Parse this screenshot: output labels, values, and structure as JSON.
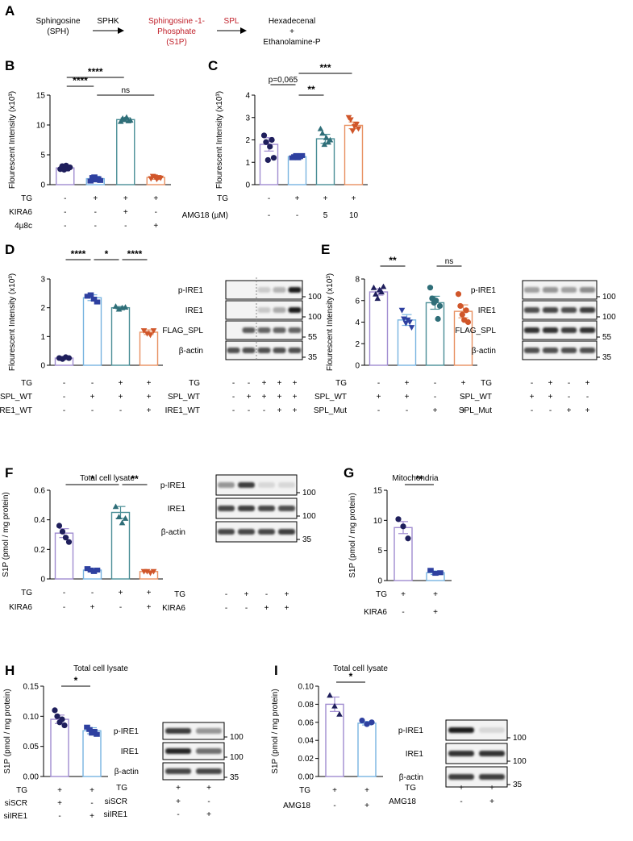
{
  "pathway": {
    "panel": "A",
    "sph": [
      "Sphingosine",
      "(SPH)"
    ],
    "sphk": "SPHK",
    "s1p": [
      "Sphingosine -1-",
      "Phosphate",
      "(S1P)"
    ],
    "spl": "SPL",
    "products": [
      "Hexadecenal",
      "+",
      "Ethanolamine-P"
    ]
  },
  "colors": {
    "navy": "#1f1f5c",
    "blue": "#2e40a0",
    "teal": "#2f6e78",
    "orange": "#d0562a",
    "purple": "#a08cd0",
    "lightblue": "#78b4e0",
    "darkteal": "#4a8e96",
    "lightorange": "#e89060",
    "s1pred": "#c0202a"
  },
  "charts": [
    {
      "id": "B",
      "panel": "B",
      "type": "bar",
      "ylabel": "Flourescent Intensity (x10³)",
      "title": "",
      "ylim": [
        0,
        15
      ],
      "ticks": [
        "0",
        "5",
        "10",
        "15"
      ],
      "values": [
        2.8,
        1.0,
        10.9,
        1.2
      ],
      "errors": [
        0.5,
        0.4,
        0.3,
        0.3
      ],
      "points": [
        [
          2.6,
          3.1,
          2.5,
          3.2,
          2.7,
          2.9
        ],
        [
          0.6,
          1.2,
          1.3,
          0.8,
          1.0,
          0.7
        ],
        [
          10.6,
          11.1,
          10.9,
          11.3,
          10.7,
          10.8
        ],
        [
          1.0,
          1.4,
          1.3,
          0.9,
          1.2,
          1.1
        ]
      ],
      "markers": [
        "circle",
        "square",
        "triangle",
        "tridown"
      ],
      "conditions": [
        {
          "label": "TG",
          "values": [
            "-",
            "+",
            "+",
            "+"
          ]
        },
        {
          "label": "KIRA6",
          "values": [
            "-",
            "-",
            "+",
            "-"
          ]
        },
        {
          "label": "4µ8c",
          "values": [
            "-",
            "-",
            "-",
            "+"
          ]
        }
      ],
      "sig": [
        {
          "from": 0,
          "to": 2,
          "text": "****"
        },
        {
          "from": 0,
          "to": 1,
          "text": "****"
        },
        {
          "from": 1,
          "to": 3,
          "text": "ns"
        }
      ]
    },
    {
      "id": "C",
      "panel": "C",
      "type": "bar",
      "ylabel": "Flourescent Intensity (x10³)",
      "title": "",
      "ylim": [
        0,
        4
      ],
      "ticks": [
        "0",
        "1",
        "2",
        "3",
        "4"
      ],
      "values": [
        1.8,
        1.25,
        2.05,
        2.65
      ],
      "errors": [
        0.3,
        0.05,
        0.2,
        0.15
      ],
      "points": [
        [
          2.2,
          1.9,
          1.1,
          1.7,
          2.0,
          1.2
        ],
        [
          1.2,
          1.25,
          1.3,
          1.2,
          1.25,
          1.3
        ],
        [
          2.5,
          2.3,
          1.8,
          2.1,
          1.9,
          2.0
        ],
        [
          3.0,
          2.9,
          2.4,
          2.6,
          2.7,
          2.5
        ]
      ],
      "markers": [
        "circle",
        "square",
        "triangle",
        "tridown"
      ],
      "conditions": [
        {
          "label": "TG",
          "values": [
            "-",
            "+",
            "+",
            "+"
          ]
        },
        {
          "label": "AMG18 (µM)",
          "values": [
            "-",
            "-",
            "5",
            "10"
          ]
        }
      ],
      "sig": [
        {
          "from": 1,
          "to": 3,
          "text": "***"
        },
        {
          "from": 0,
          "to": 1,
          "text": "p=0,065"
        },
        {
          "from": 1,
          "to": 2,
          "text": "**"
        }
      ]
    },
    {
      "id": "D",
      "panel": "D",
      "type": "bar",
      "ylabel": "Flourescent Intensity (x10³)",
      "title": "",
      "ylim": [
        0,
        3
      ],
      "ticks": [
        "0",
        "1",
        "2",
        "3"
      ],
      "values": [
        0.25,
        2.35,
        2.0,
        1.15
      ],
      "errors": [
        0.02,
        0.1,
        0.04,
        0.08
      ],
      "points": [
        [
          0.25,
          0.22,
          0.28,
          0.25
        ],
        [
          2.4,
          2.45,
          2.3,
          2.2
        ],
        [
          2.05,
          1.95,
          2.0,
          2.02
        ],
        [
          1.2,
          1.1,
          1.05,
          1.2
        ]
      ],
      "markers": [
        "circle",
        "square",
        "triangle",
        "tridown"
      ],
      "conditions": [
        {
          "label": "TG",
          "values": [
            "-",
            "-",
            "+",
            "+"
          ]
        },
        {
          "label": "SPL_WT",
          "values": [
            "-",
            "+",
            "+",
            "+"
          ]
        },
        {
          "label": "IRE1_WT",
          "values": [
            "-",
            "-",
            "-",
            "+"
          ]
        }
      ],
      "sig": [
        {
          "from": 0,
          "to": 1,
          "text": "****"
        },
        {
          "from": 1,
          "to": 2,
          "text": "*"
        },
        {
          "from": 2,
          "to": 3,
          "text": "****"
        }
      ]
    },
    {
      "id": "E",
      "panel": "E",
      "type": "bar",
      "ylabel": "Flourescent Intensity (x10³)",
      "title": "",
      "ylim": [
        0,
        8
      ],
      "ticks": [
        "0",
        "2",
        "4",
        "6",
        "8"
      ],
      "values": [
        6.8,
        4.2,
        5.8,
        5.0
      ],
      "errors": [
        0.3,
        0.5,
        0.6,
        0.6
      ],
      "points": [
        [
          7.2,
          6.6,
          6.2,
          7.0,
          6.8,
          7.3
        ],
        [
          5.1,
          4.3,
          3.9,
          4.2,
          4.0,
          3.5
        ],
        [
          7.2,
          6.2,
          5.8,
          6.0,
          4.3,
          5.5
        ],
        [
          6.6,
          5.5,
          4.7,
          4.2,
          5.1,
          4.0
        ]
      ],
      "markers": [
        "triangle",
        "tridown",
        "circle",
        "circle"
      ],
      "conditions": [
        {
          "label": "TG",
          "values": [
            "-",
            "+",
            "-",
            "+"
          ]
        },
        {
          "label": "SPL_WT",
          "values": [
            "+",
            "+",
            "-",
            "-"
          ]
        },
        {
          "label": "SPL_Mut",
          "values": [
            "-",
            "-",
            "+",
            "+"
          ]
        }
      ],
      "sig": [
        {
          "from": 0,
          "to": 1,
          "text": "**"
        },
        {
          "from": 2,
          "to": 3,
          "text": "ns"
        }
      ]
    },
    {
      "id": "F",
      "panel": "F",
      "type": "bar",
      "ylabel": "S1P (pmol / mg protein)",
      "title": "Total cell lysate",
      "ylim": [
        0,
        0.6
      ],
      "ticks": [
        "0",
        "0.2",
        "0.4",
        "0.6"
      ],
      "values": [
        0.31,
        0.06,
        0.45,
        0.05
      ],
      "errors": [
        0.03,
        0.01,
        0.04,
        0.005
      ],
      "points": [
        [
          0.36,
          0.32,
          0.28,
          0.25
        ],
        [
          0.07,
          0.06,
          0.05,
          0.06
        ],
        [
          0.49,
          0.42,
          0.38,
          0.41
        ],
        [
          0.05,
          0.05,
          0.04,
          0.05
        ]
      ],
      "markers": [
        "circle",
        "square",
        "triangle",
        "tridown"
      ],
      "conditions": [
        {
          "label": "TG",
          "values": [
            "-",
            "-",
            "+",
            "+"
          ]
        },
        {
          "label": "KIRA6",
          "values": [
            "-",
            "+",
            "-",
            "+"
          ]
        }
      ],
      "sig": [
        {
          "from": 0,
          "to": 2,
          "text": "*"
        },
        {
          "from": 2,
          "to": 3,
          "text": "**"
        }
      ]
    },
    {
      "id": "G",
      "panel": "G",
      "type": "bar",
      "ylabel": "S1P (pmol / mg protein)",
      "title": "Mitochondria",
      "ylim": [
        0,
        15
      ],
      "ticks": [
        "0",
        "5",
        "10",
        "15"
      ],
      "values": [
        8.8,
        1.3
      ],
      "errors": [
        1.0,
        0.3
      ],
      "points": [
        [
          10.2,
          9.0,
          7.0
        ],
        [
          1.7,
          1.2,
          1.3
        ]
      ],
      "markers": [
        "circle",
        "square"
      ],
      "conditions": [
        {
          "label": "TG",
          "values": [
            "+",
            "+"
          ]
        },
        {
          "label": "KIRA6",
          "values": [
            "-",
            "+"
          ]
        }
      ],
      "sig": [
        {
          "from": 0,
          "to": 1,
          "text": "**"
        }
      ]
    },
    {
      "id": "H",
      "panel": "H",
      "type": "bar",
      "ylabel": "S1P (pmol / mg protein)",
      "title": "Total cell lysate",
      "ylim": [
        0,
        0.15
      ],
      "ticks": [
        "0.00",
        "0.05",
        "0.10",
        "0.15"
      ],
      "values": [
        0.095,
        0.076
      ],
      "errors": [
        0.007,
        0.005
      ],
      "points": [
        [
          0.11,
          0.1,
          0.09,
          0.095,
          0.085
        ],
        [
          0.082,
          0.078,
          0.072,
          0.075,
          0.07
        ]
      ],
      "markers": [
        "circle",
        "square"
      ],
      "conditions": [
        {
          "label": "TG",
          "values": [
            "+",
            "+"
          ]
        },
        {
          "label": "siSCR",
          "values": [
            "+",
            "-"
          ]
        },
        {
          "label": "siIRE1",
          "values": [
            "-",
            "+"
          ]
        }
      ],
      "sig": [
        {
          "from": 0,
          "to": 1,
          "text": "*"
        }
      ]
    },
    {
      "id": "I",
      "panel": "I",
      "type": "bar",
      "ylabel": "S1P (pmol / mg protein)",
      "title": "Total cell lysate",
      "ylim": [
        0,
        0.1
      ],
      "ticks": [
        "0.00",
        "0.02",
        "0.04",
        "0.06",
        "0.08",
        "0.10"
      ],
      "values": [
        0.08,
        0.059
      ],
      "errors": [
        0.008,
        0.002
      ],
      "points": [
        [
          0.09,
          0.078,
          0.069
        ],
        [
          0.062,
          0.058,
          0.06
        ]
      ],
      "markers": [
        "triangle",
        "circle"
      ],
      "conditions": [
        {
          "label": "TG",
          "values": [
            "+",
            "+"
          ]
        },
        {
          "label": "AMG18",
          "values": [
            "-",
            "+"
          ]
        }
      ],
      "sig": [
        {
          "from": 0,
          "to": 1,
          "text": "*"
        }
      ]
    }
  ],
  "blots": [
    {
      "id": "D",
      "labels": [
        "p-IRE1",
        "IRE1",
        "FLAG_SPL",
        "β-actin"
      ],
      "markers": [
        "100",
        "100",
        "55",
        "35"
      ],
      "lanes": 5,
      "divider_after": 1,
      "intensity": [
        [
          0,
          0,
          0.08,
          0.2,
          0.95
        ],
        [
          0,
          0,
          0.1,
          0.25,
          0.95
        ],
        [
          0,
          0.65,
          0.6,
          0.6,
          0.6
        ],
        [
          0.7,
          0.7,
          0.7,
          0.7,
          0.7
        ]
      ],
      "conditions": [
        {
          "label": "TG",
          "values": [
            "-",
            "-",
            "+",
            "+",
            "+"
          ]
        },
        {
          "label": "SPL_WT",
          "values": [
            "-",
            "+",
            "+",
            "+",
            "+"
          ]
        },
        {
          "label": "IRE1_WT",
          "values": [
            "-",
            "-",
            "-",
            "+",
            "+"
          ]
        }
      ]
    },
    {
      "id": "E",
      "labels": [
        "p-IRE1",
        "IRE1",
        "FLAG_SPL",
        "β-actin"
      ],
      "markers": [
        "100",
        "100",
        "55",
        "35"
      ],
      "lanes": 4,
      "divider_after": -1,
      "intensity": [
        [
          0.3,
          0.35,
          0.3,
          0.4
        ],
        [
          0.7,
          0.75,
          0.7,
          0.8
        ],
        [
          0.85,
          0.85,
          0.8,
          0.85
        ],
        [
          0.7,
          0.7,
          0.7,
          0.7
        ]
      ],
      "conditions": [
        {
          "label": "TG",
          "values": [
            "-",
            "+",
            "-",
            "+"
          ]
        },
        {
          "label": "SPL_WT",
          "values": [
            "+",
            "+",
            "-",
            "-"
          ]
        },
        {
          "label": "SPL_Mut",
          "values": [
            "-",
            "-",
            "+",
            "+"
          ]
        }
      ]
    },
    {
      "id": "F",
      "labels": [
        "p-IRE1",
        "IRE1",
        "β-actin"
      ],
      "markers": [
        "100",
        "100",
        "35"
      ],
      "lanes": 4,
      "divider_after": -1,
      "intensity": [
        [
          0.35,
          0.8,
          0.02,
          0.02
        ],
        [
          0.75,
          0.8,
          0.75,
          0.7
        ],
        [
          0.75,
          0.75,
          0.75,
          0.8
        ]
      ],
      "conditions": [
        {
          "label": "TG",
          "values": [
            "-",
            "+",
            "-",
            "+"
          ]
        },
        {
          "label": "KIRA6",
          "values": [
            "-",
            "-",
            "+",
            "+"
          ]
        }
      ]
    },
    {
      "id": "H",
      "labels": [
        "p-IRE1",
        "IRE1",
        "β-actin"
      ],
      "markers": [
        "100",
        "100",
        "35"
      ],
      "lanes": 2,
      "divider_after": -1,
      "intensity": [
        [
          0.8,
          0.35
        ],
        [
          0.9,
          0.55
        ],
        [
          0.75,
          0.75
        ]
      ],
      "conditions": [
        {
          "label": "TG",
          "values": [
            "+",
            "+"
          ]
        },
        {
          "label": "siSCR",
          "values": [
            "+",
            "-"
          ]
        },
        {
          "label": "siIRE1",
          "values": [
            "-",
            "+"
          ]
        }
      ]
    },
    {
      "id": "I",
      "labels": [
        "p-IRE1",
        "IRE1",
        "β-actin"
      ],
      "markers": [
        "100",
        "100",
        "35"
      ],
      "lanes": 2,
      "divider_after": -1,
      "intensity": [
        [
          0.95,
          0.02
        ],
        [
          0.85,
          0.85
        ],
        [
          0.8,
          0.8
        ]
      ],
      "conditions": [
        {
          "label": "TG",
          "values": [
            "+",
            "+"
          ]
        },
        {
          "label": "AMG18",
          "values": [
            "-",
            "+"
          ]
        }
      ]
    }
  ]
}
